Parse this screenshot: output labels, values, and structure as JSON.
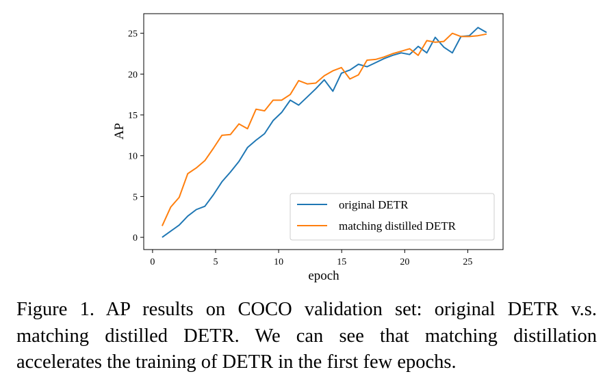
{
  "chart_data": {
    "type": "line",
    "title": "",
    "xlabel": "epoch",
    "ylabel": "AP",
    "xlim": [
      -0.7,
      27.8
    ],
    "ylim": [
      -1.5,
      27.4
    ],
    "xticks": [
      0,
      5,
      10,
      15,
      20,
      25
    ],
    "yticks": [
      0,
      5,
      10,
      15,
      20,
      25
    ],
    "grid": false,
    "legend_position": "lower-right",
    "x": [
      0.76,
      1.44,
      2.11,
      2.79,
      3.47,
      4.15,
      4.82,
      5.5,
      6.18,
      6.85,
      7.53,
      8.21,
      8.88,
      9.56,
      10.24,
      10.92,
      11.59,
      12.27,
      12.95,
      13.62,
      14.3,
      14.98,
      15.65,
      16.33,
      17.01,
      17.69,
      18.36,
      19.04,
      19.72,
      20.39,
      21.07,
      21.75,
      22.42,
      23.1,
      23.78,
      24.46,
      25.13,
      25.81,
      26.49
    ],
    "series": [
      {
        "name": "original DETR",
        "color": "#1f77b4",
        "values": [
          0.0,
          0.75,
          1.5,
          2.6,
          3.4,
          3.8,
          5.2,
          6.8,
          8.0,
          9.3,
          11.0,
          11.9,
          12.7,
          14.3,
          15.3,
          16.8,
          16.2,
          17.2,
          18.2,
          19.3,
          17.9,
          20.1,
          20.5,
          21.2,
          20.9,
          21.4,
          21.9,
          22.3,
          22.6,
          22.4,
          23.4,
          22.6,
          24.5,
          23.3,
          22.6,
          24.6,
          24.7,
          25.7,
          25.1
        ]
      },
      {
        "name": "matching distilled DETR",
        "color": "#ff7f0e",
        "values": [
          1.4,
          3.7,
          4.9,
          7.8,
          8.5,
          9.4,
          10.9,
          12.5,
          12.6,
          13.9,
          13.3,
          15.7,
          15.5,
          16.8,
          16.8,
          17.5,
          19.2,
          18.8,
          18.9,
          19.8,
          20.4,
          20.8,
          19.4,
          19.9,
          21.7,
          21.8,
          22.1,
          22.5,
          22.8,
          23.1,
          22.3,
          24.1,
          23.9,
          24.0,
          25.0,
          24.6,
          24.6,
          24.7,
          24.9
        ]
      }
    ]
  },
  "caption": "Figure 1. AP results on COCO validation set: original DETR v.s. matching distilled DETR. We can see that matching distillation accelerates the training of DETR in the first few epochs."
}
